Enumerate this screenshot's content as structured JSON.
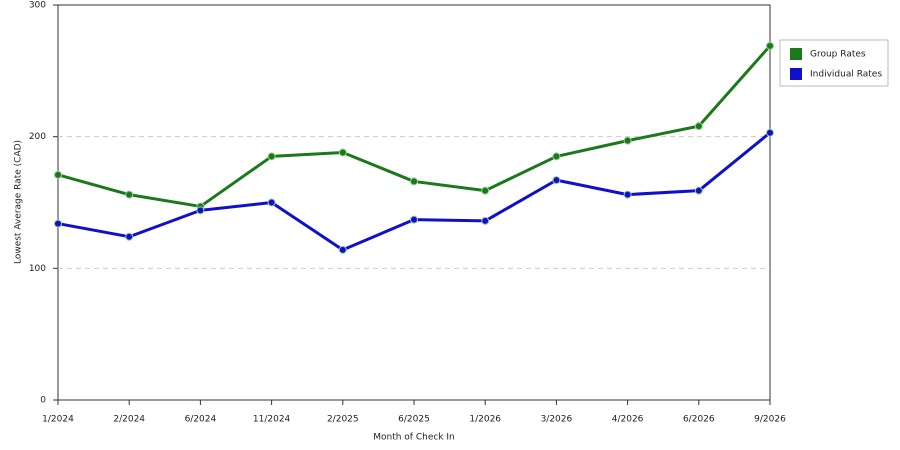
{
  "chart_data": {
    "type": "line",
    "x_label": "Month of Check In",
    "y_label": "Lowest Average Rate (CAD)",
    "categories": [
      "1/2024",
      "2/2024",
      "6/2024",
      "11/2024",
      "2/2025",
      "6/2025",
      "1/2026",
      "3/2026",
      "4/2026",
      "6/2026",
      "9/2026"
    ],
    "series": [
      {
        "name": "Group Rates",
        "color": "#1a7a1a",
        "values": [
          171,
          156,
          147,
          185,
          188,
          166,
          159,
          185,
          197,
          208,
          269
        ]
      },
      {
        "name": "Individual Rates",
        "color": "#1010cc",
        "values": [
          134,
          124,
          144,
          150,
          114,
          137,
          136,
          167,
          156,
          159,
          203
        ]
      }
    ],
    "ylim": [
      0,
      300
    ],
    "yticks": [
      0,
      100,
      200,
      300
    ],
    "grid": true
  }
}
